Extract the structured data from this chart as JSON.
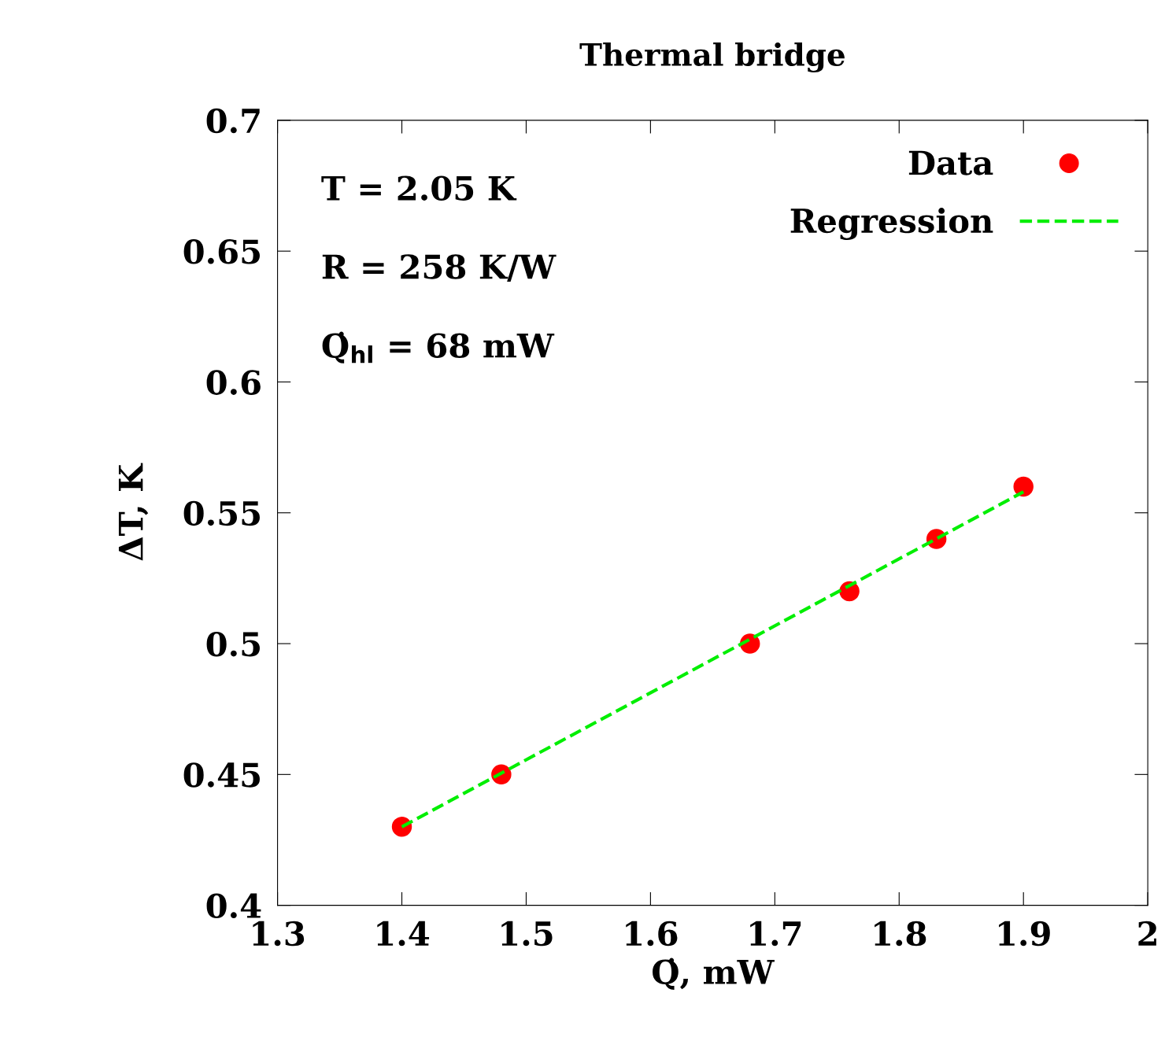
{
  "chart_data": {
    "type": "scatter",
    "title": "Thermal bridge",
    "xlabel": "Q̇, mW",
    "ylabel": "ΔT, K",
    "x": [
      1.4,
      1.48,
      1.68,
      1.76,
      1.83,
      1.9
    ],
    "series": [
      {
        "name": "Data",
        "color": "#ff0000",
        "marker": "circle",
        "values": [
          0.43,
          0.45,
          0.5,
          0.52,
          0.54,
          0.56
        ]
      },
      {
        "name": "Regression",
        "type": "line",
        "color": "#00ee00",
        "line_style": "dashed",
        "marker": "none",
        "x": [
          1.4,
          1.9
        ],
        "values": [
          0.43,
          0.558
        ]
      }
    ],
    "xlim": [
      1.3,
      2
    ],
    "xticks": [
      1.3,
      1.4,
      1.5,
      1.6,
      1.7,
      1.8,
      1.9,
      2
    ],
    "ylim": [
      0.4,
      0.7
    ],
    "yticks": [
      0.4,
      0.45,
      0.5,
      0.55,
      0.6,
      0.65,
      0.7
    ],
    "annotations": [
      "T = 2.05 K",
      "R = 258 K/W",
      "Q̇$_{hl}$ = 68 mW"
    ],
    "grid": false,
    "legend": "top right"
  }
}
